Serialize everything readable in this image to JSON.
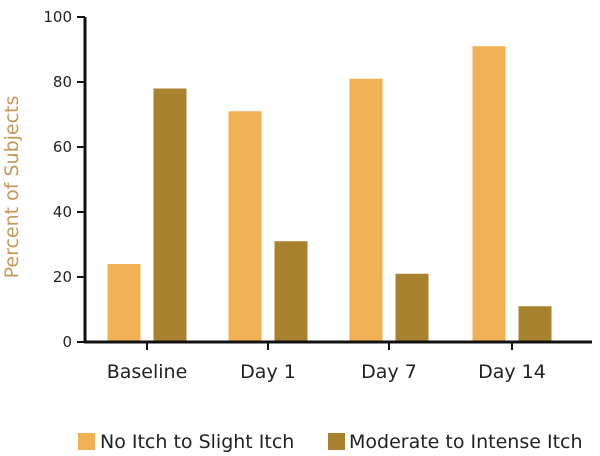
{
  "chart_data": {
    "type": "bar",
    "title": "",
    "xlabel": "",
    "ylabel": "Percent of Subjects",
    "ylim": [
      0,
      100
    ],
    "yticks": [
      0,
      20,
      40,
      60,
      80,
      100
    ],
    "grid": false,
    "legend_position": "bottom",
    "categories": [
      "Baseline",
      "Day 1",
      "Day 7",
      "Day 14"
    ],
    "series": [
      {
        "name": "No Itch to Slight Itch",
        "color": "#f0b155",
        "values": [
          24,
          71,
          81,
          91
        ]
      },
      {
        "name": "Moderate to Intense Itch",
        "color": "#a8822f",
        "values": [
          78,
          31,
          21,
          11
        ]
      }
    ]
  }
}
